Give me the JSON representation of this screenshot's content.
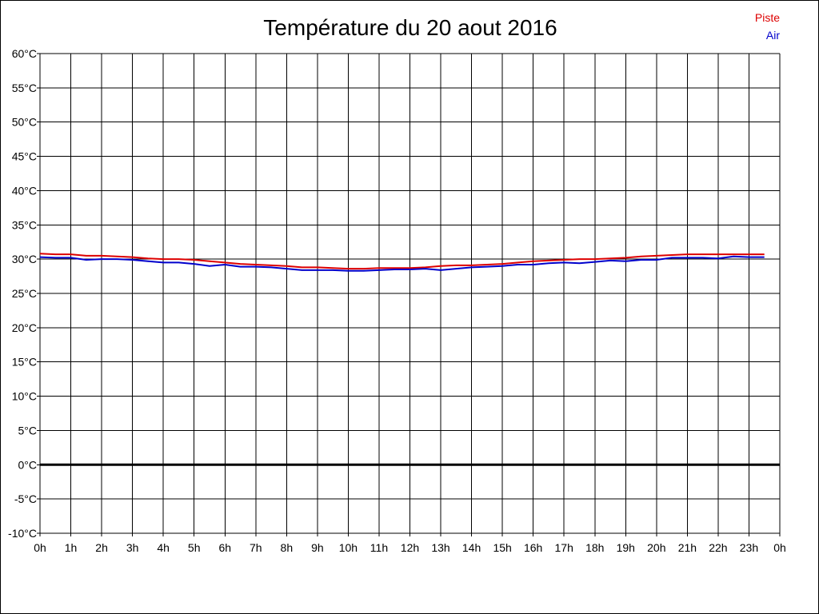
{
  "chart_data": {
    "type": "line",
    "title": "Température du 20 aout 2016",
    "xlabel": "",
    "ylabel": "",
    "ylim": [
      -10,
      60
    ],
    "xlim": [
      0,
      24
    ],
    "y_ticks": [
      60,
      55,
      50,
      45,
      40,
      35,
      30,
      25,
      20,
      15,
      10,
      5,
      0,
      -5,
      -10
    ],
    "y_tick_labels": [
      "60°C",
      "55°C",
      "50°C",
      "45°C",
      "40°C",
      "35°C",
      "30°C",
      "25°C",
      "20°C",
      "15°C",
      "10°C",
      "5°C",
      "0°C",
      "-5°C",
      "-10°C"
    ],
    "x_tick_labels": [
      "0h",
      "1h",
      "2h",
      "3h",
      "4h",
      "5h",
      "6h",
      "7h",
      "8h",
      "9h",
      "10h",
      "11h",
      "12h",
      "13h",
      "14h",
      "15h",
      "16h",
      "17h",
      "18h",
      "19h",
      "20h",
      "21h",
      "22h",
      "23h",
      "0h"
    ],
    "grid": true,
    "zero_line": true,
    "legend_position": "top-right",
    "series": [
      {
        "name": "Piste",
        "color": "#dd0000",
        "x": [
          0,
          0.5,
          1,
          1.5,
          2,
          2.5,
          3,
          3.5,
          4,
          4.5,
          5,
          5.5,
          6,
          6.5,
          7,
          7.5,
          8,
          8.5,
          9,
          9.5,
          10,
          10.5,
          11,
          11.5,
          12,
          12.5,
          13,
          13.5,
          14,
          14.5,
          15,
          15.5,
          16,
          16.5,
          17,
          17.5,
          18,
          18.5,
          19,
          19.5,
          20,
          20.5,
          21,
          21.5,
          22,
          22.5,
          23,
          23.5
        ],
        "values": [
          30.8,
          30.7,
          30.7,
          30.5,
          30.5,
          30.4,
          30.3,
          30.1,
          30.0,
          30.0,
          29.9,
          29.7,
          29.5,
          29.3,
          29.2,
          29.1,
          29.0,
          28.8,
          28.8,
          28.7,
          28.6,
          28.6,
          28.7,
          28.7,
          28.7,
          28.8,
          29.0,
          29.1,
          29.1,
          29.2,
          29.3,
          29.5,
          29.7,
          29.8,
          29.9,
          30.0,
          30.0,
          30.1,
          30.2,
          30.4,
          30.5,
          30.6,
          30.7,
          30.7,
          30.7,
          30.7,
          30.7,
          30.7
        ]
      },
      {
        "name": "Air",
        "color": "#0000cc",
        "x": [
          0,
          0.5,
          1,
          1.5,
          2,
          2.5,
          3,
          3.5,
          4,
          4.5,
          5,
          5.5,
          6,
          6.5,
          7,
          7.5,
          8,
          8.5,
          9,
          9.5,
          10,
          10.5,
          11,
          11.5,
          12,
          12.5,
          13,
          13.5,
          14,
          14.5,
          15,
          15.5,
          16,
          16.5,
          17,
          17.5,
          18,
          18.5,
          19,
          19.5,
          20,
          20.5,
          21,
          21.5,
          22,
          22.5,
          23,
          23.5
        ],
        "values": [
          30.3,
          30.2,
          30.2,
          29.9,
          30.0,
          30.0,
          29.9,
          29.7,
          29.5,
          29.5,
          29.3,
          29.0,
          29.2,
          28.9,
          28.9,
          28.8,
          28.6,
          28.4,
          28.4,
          28.4,
          28.3,
          28.3,
          28.4,
          28.5,
          28.5,
          28.6,
          28.4,
          28.6,
          28.8,
          28.9,
          29.0,
          29.2,
          29.2,
          29.4,
          29.5,
          29.4,
          29.6,
          29.8,
          29.7,
          29.9,
          29.9,
          30.2,
          30.2,
          30.2,
          30.1,
          30.4,
          30.3,
          30.3
        ]
      }
    ]
  }
}
